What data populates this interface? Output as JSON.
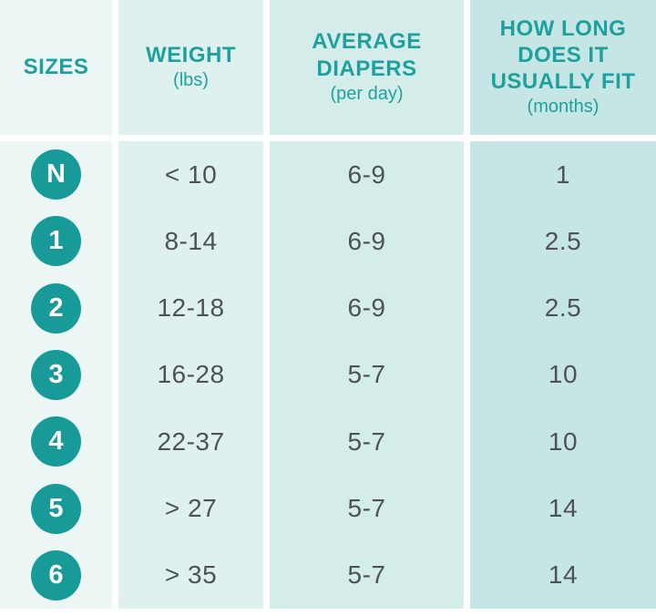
{
  "chart_data": {
    "type": "table",
    "columns": [
      {
        "key": "size",
        "label": "SIZES",
        "unit": ""
      },
      {
        "key": "weight",
        "label": "WEIGHT",
        "unit": "(lbs)"
      },
      {
        "key": "diapers",
        "label": "AVERAGE DIAPERS",
        "unit": "(per day)"
      },
      {
        "key": "fit",
        "label": "HOW LONG DOES IT USUALLY FIT",
        "unit": "(months)"
      }
    ],
    "rows": [
      {
        "size": "N",
        "weight": "< 10",
        "diapers": "6-9",
        "fit": "1"
      },
      {
        "size": "1",
        "weight": "8-14",
        "diapers": "6-9",
        "fit": "2.5"
      },
      {
        "size": "2",
        "weight": "12-18",
        "diapers": "6-9",
        "fit": "2.5"
      },
      {
        "size": "3",
        "weight": "16-28",
        "diapers": "5-7",
        "fit": "10"
      },
      {
        "size": "4",
        "weight": "22-37",
        "diapers": "5-7",
        "fit": "10"
      },
      {
        "size": "5",
        "weight": "> 27",
        "diapers": "5-7",
        "fit": "14"
      },
      {
        "size": "6",
        "weight": "> 35",
        "diapers": "5-7",
        "fit": "14"
      }
    ]
  },
  "header": {
    "sizes": {
      "line1": "SIZES"
    },
    "weight": {
      "line1": "WEIGHT",
      "sub": "(lbs)"
    },
    "diapers": {
      "line1": "AVERAGE",
      "line2": "DIAPERS",
      "sub": "(per day)"
    },
    "fit": {
      "line1": "HOW LONG",
      "line2": "DOES IT",
      "line3": "USUALLY FIT",
      "sub": "(months)"
    }
  },
  "colors": {
    "accent_teal_badge": "#189b98",
    "header_text_teal": "#1ea19d",
    "body_text_gray": "#4e5257",
    "column_backgrounds": [
      "#ecf6f5",
      "#dff1ef",
      "#d4edeb",
      "#c5e6e4"
    ],
    "separator_white": "#ffffff"
  }
}
